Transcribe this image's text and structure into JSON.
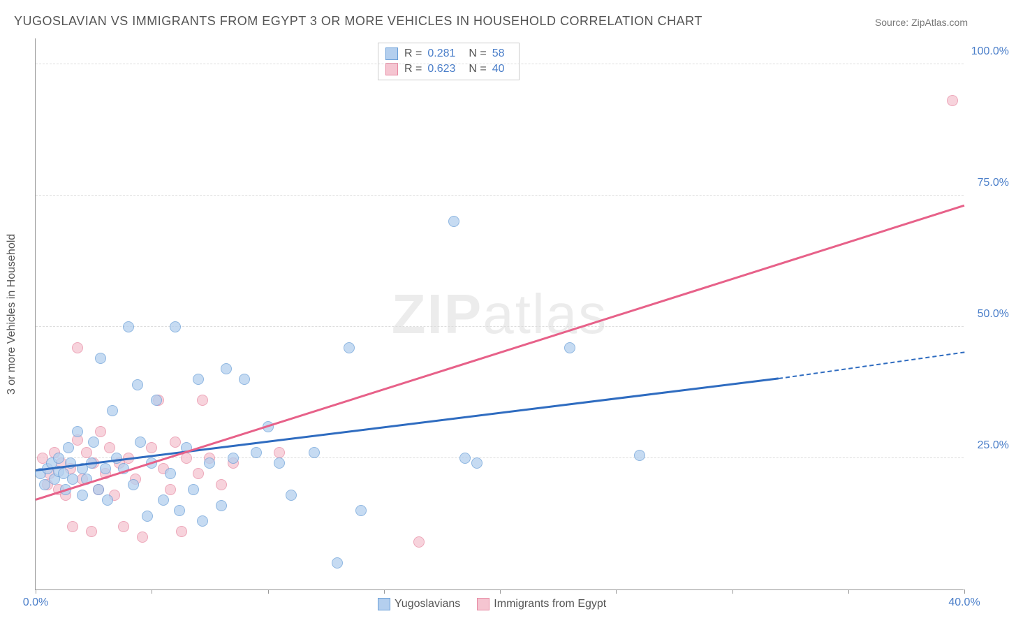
{
  "title": "YUGOSLAVIAN VS IMMIGRANTS FROM EGYPT 3 OR MORE VEHICLES IN HOUSEHOLD CORRELATION CHART",
  "source": "Source: ZipAtlas.com",
  "ylabel": "3 or more Vehicles in Household",
  "watermark_zip": "ZIP",
  "watermark_atlas": "atlas",
  "chart": {
    "type": "scatter",
    "background_color": "#ffffff",
    "grid_color": "#dddddd",
    "axis_color": "#999999",
    "tick_label_color": "#4a7ec9",
    "label_color": "#555555",
    "title_fontsize": 18,
    "label_fontsize": 16,
    "tick_fontsize": 16,
    "xlim": [
      0,
      40
    ],
    "ylim": [
      0,
      105
    ],
    "yticks": [
      25,
      50,
      75,
      100
    ],
    "ytick_labels": [
      "25.0%",
      "50.0%",
      "75.0%",
      "100.0%"
    ],
    "xtick_positions": [
      0,
      5,
      10,
      15,
      20,
      25,
      30,
      35,
      40
    ],
    "xlabel_start": "0.0%",
    "xlabel_end": "40.0%",
    "marker_radius": 8,
    "marker_opacity": 0.75,
    "series": [
      {
        "name": "Yugoslavians",
        "fill_color": "#b4cfee",
        "stroke_color": "#6a9fd8",
        "line_color": "#2f6cc0",
        "r_value": "0.281",
        "n_value": "58",
        "points": [
          [
            0.2,
            22
          ],
          [
            0.4,
            20
          ],
          [
            0.5,
            23
          ],
          [
            0.7,
            24
          ],
          [
            0.8,
            21
          ],
          [
            1.0,
            22.5
          ],
          [
            1.0,
            25
          ],
          [
            1.2,
            22
          ],
          [
            1.3,
            19
          ],
          [
            1.4,
            27
          ],
          [
            1.5,
            24
          ],
          [
            1.6,
            21
          ],
          [
            1.8,
            30
          ],
          [
            2.0,
            23
          ],
          [
            2.0,
            18
          ],
          [
            2.2,
            21
          ],
          [
            2.4,
            24
          ],
          [
            2.5,
            28
          ],
          [
            2.7,
            19
          ],
          [
            2.8,
            44
          ],
          [
            3.0,
            23
          ],
          [
            3.1,
            17
          ],
          [
            3.3,
            34
          ],
          [
            3.5,
            25
          ],
          [
            3.8,
            23
          ],
          [
            4.0,
            50
          ],
          [
            4.2,
            20
          ],
          [
            4.4,
            39
          ],
          [
            4.5,
            28
          ],
          [
            4.8,
            14
          ],
          [
            5.0,
            24
          ],
          [
            5.2,
            36
          ],
          [
            5.5,
            17
          ],
          [
            5.8,
            22
          ],
          [
            6.0,
            50
          ],
          [
            6.2,
            15
          ],
          [
            6.5,
            27
          ],
          [
            6.8,
            19
          ],
          [
            7.0,
            40
          ],
          [
            7.2,
            13
          ],
          [
            7.5,
            24
          ],
          [
            8.0,
            16
          ],
          [
            8.2,
            42
          ],
          [
            8.5,
            25
          ],
          [
            9.0,
            40
          ],
          [
            9.5,
            26
          ],
          [
            10.0,
            31
          ],
          [
            10.5,
            24
          ],
          [
            11.0,
            18
          ],
          [
            12.0,
            26
          ],
          [
            13.0,
            5
          ],
          [
            13.5,
            46
          ],
          [
            14.0,
            15
          ],
          [
            18.0,
            70
          ],
          [
            19.0,
            24
          ],
          [
            23.0,
            46
          ],
          [
            26.0,
            25.5
          ],
          [
            18.5,
            25
          ]
        ],
        "trend": {
          "x1": 0,
          "y1": 22.5,
          "x2": 32,
          "y2": 40,
          "dash_x2": 40,
          "dash_y2": 45
        }
      },
      {
        "name": "Immigrants from Egypt",
        "fill_color": "#f5c5d1",
        "stroke_color": "#e78aa3",
        "line_color": "#e76189",
        "r_value": "0.623",
        "n_value": "40",
        "points": [
          [
            0.3,
            25
          ],
          [
            0.5,
            20
          ],
          [
            0.6,
            22
          ],
          [
            0.8,
            26
          ],
          [
            1.0,
            19
          ],
          [
            1.1,
            24
          ],
          [
            1.3,
            18
          ],
          [
            1.5,
            23
          ],
          [
            1.6,
            12
          ],
          [
            1.8,
            28.5
          ],
          [
            1.8,
            46
          ],
          [
            2.0,
            21
          ],
          [
            2.2,
            26
          ],
          [
            2.4,
            11
          ],
          [
            2.5,
            24
          ],
          [
            2.7,
            19
          ],
          [
            2.8,
            30
          ],
          [
            3.0,
            22
          ],
          [
            3.2,
            27
          ],
          [
            3.4,
            18
          ],
          [
            3.6,
            24
          ],
          [
            3.8,
            12
          ],
          [
            4.0,
            25
          ],
          [
            4.3,
            21
          ],
          [
            4.6,
            10
          ],
          [
            5.0,
            27
          ],
          [
            5.3,
            36
          ],
          [
            5.5,
            23
          ],
          [
            5.8,
            19
          ],
          [
            6.0,
            28
          ],
          [
            6.3,
            11
          ],
          [
            6.5,
            25
          ],
          [
            7.0,
            22
          ],
          [
            7.2,
            36
          ],
          [
            7.5,
            25
          ],
          [
            8.0,
            20
          ],
          [
            8.5,
            24
          ],
          [
            10.5,
            26
          ],
          [
            16.5,
            9
          ],
          [
            39.5,
            93
          ]
        ],
        "trend": {
          "x1": 0,
          "y1": 17,
          "x2": 40,
          "y2": 73
        }
      }
    ]
  },
  "legend_top_labels": {
    "r": "R  =",
    "n": "N  ="
  },
  "legend_bottom": [
    "Yugoslavians",
    "Immigrants from Egypt"
  ]
}
